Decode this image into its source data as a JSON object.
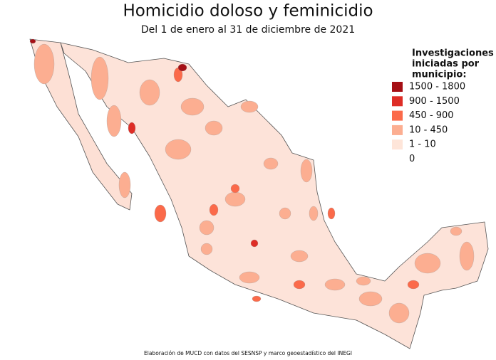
{
  "title": "Homicidio doloso y feminicidio",
  "subtitle": "Del 1 de enero al 31 de diciembre de 2021",
  "legend": {
    "title_lines": [
      "Investigaciones",
      "iniciadas por",
      "municipio:"
    ],
    "items": [
      {
        "label": "1500 - 1800",
        "color": "#a50f15"
      },
      {
        "label": "900 - 1500",
        "color": "#de2d26"
      },
      {
        "label": "450 - 900",
        "color": "#fb6a4a"
      },
      {
        "label": "10 - 450",
        "color": "#fcae91"
      },
      {
        "label": "1 - 10",
        "color": "#fee5d9"
      },
      {
        "label": "0",
        "color": "#ffffff"
      }
    ]
  },
  "source": "Elaboración de MUCD con datos del SESNSP y marco geoestadístico del INEGI"
}
